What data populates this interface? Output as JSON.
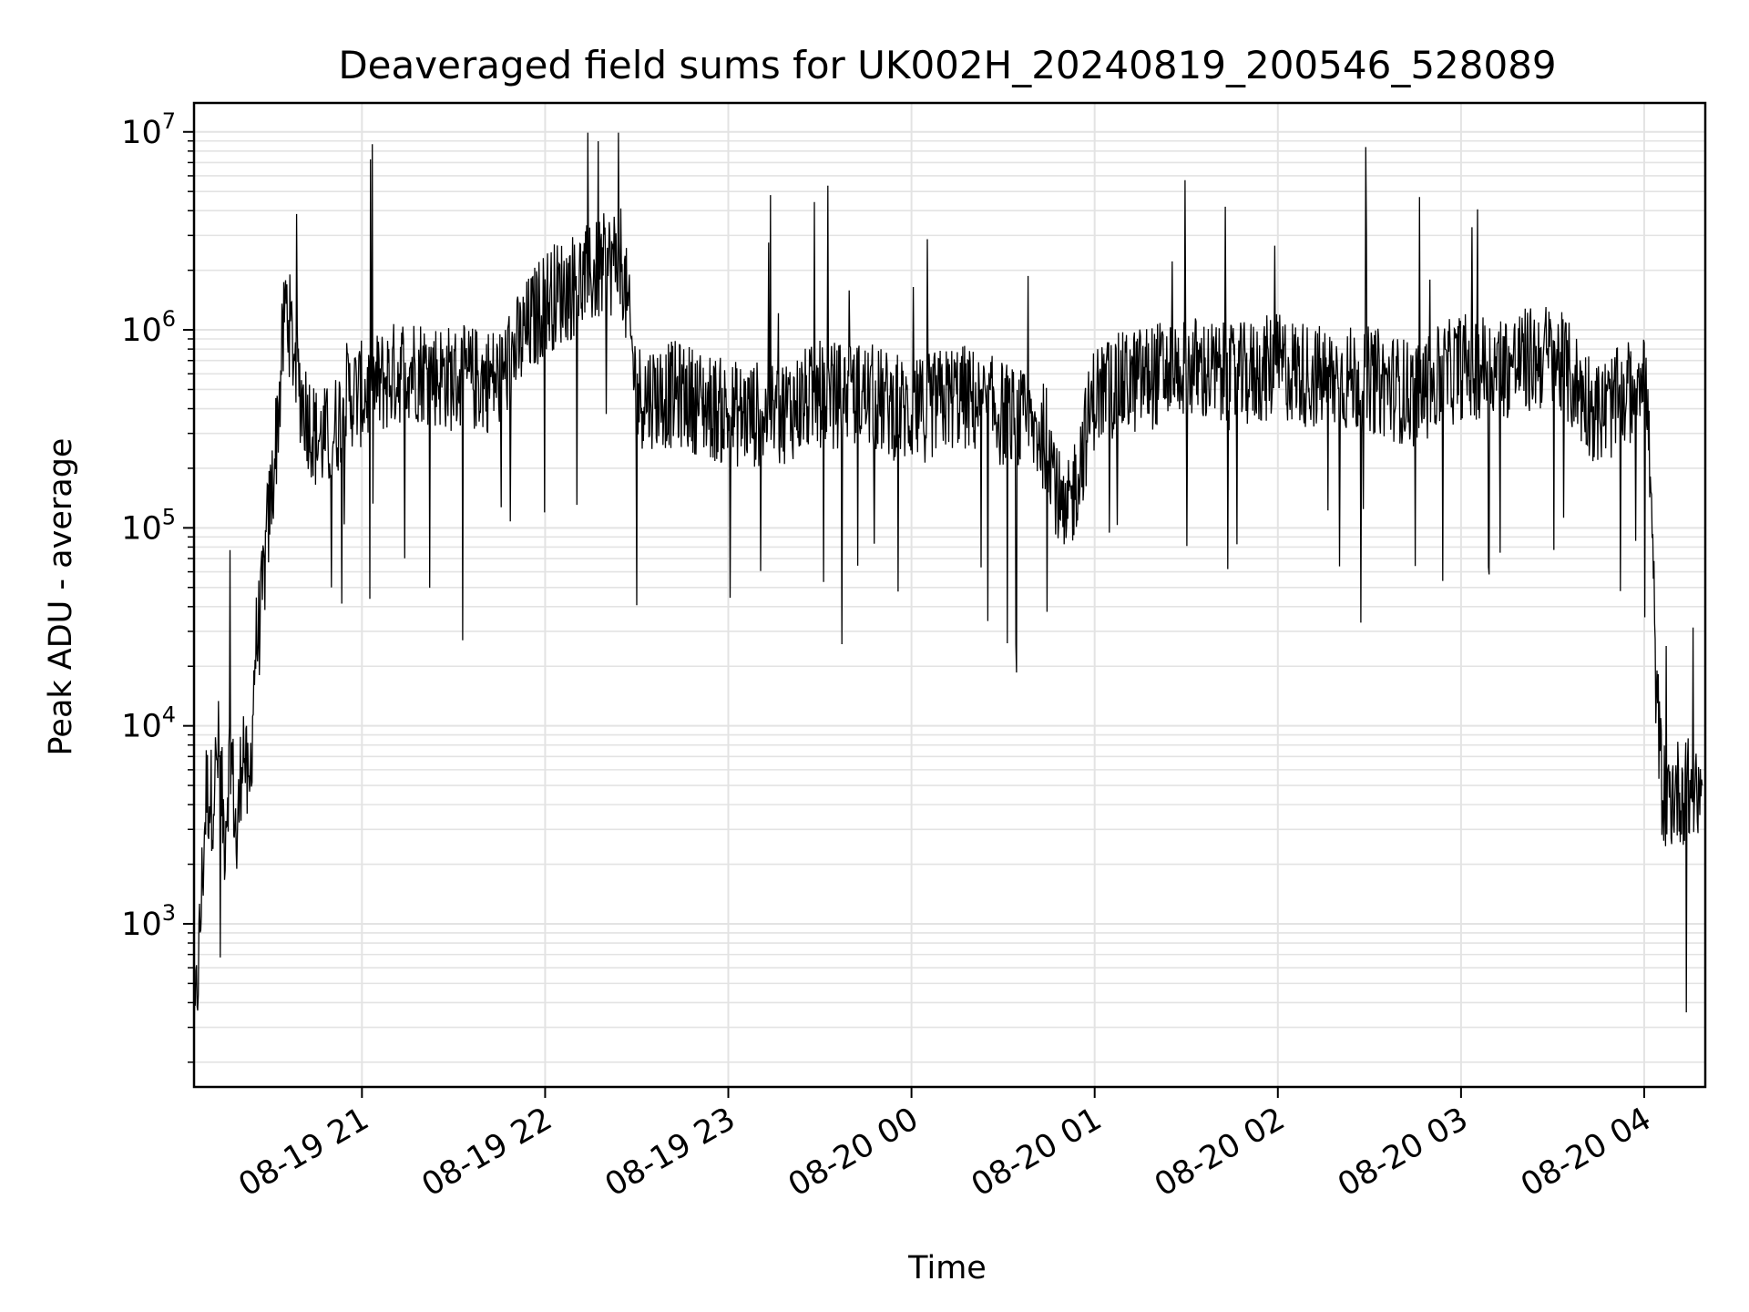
{
  "chart_data": {
    "type": "line",
    "title": "Deaveraged field sums for UK002H_20240819_200546_528089",
    "xlabel": "Time",
    "ylabel": "Peak ADU - average",
    "yscale": "log",
    "ylim": [
      150,
      14000000
    ],
    "xlim": [
      "2024-08-19 20:05",
      "2024-08-20 04:20"
    ],
    "grid": "on (major and minor)",
    "line_color": "#000000",
    "x_ticks": [
      {
        "label": "08-19 21",
        "t": "2024-08-19 21:00"
      },
      {
        "label": "08-19 22",
        "t": "2024-08-19 22:00"
      },
      {
        "label": "08-19 23",
        "t": "2024-08-19 23:00"
      },
      {
        "label": "08-20 00",
        "t": "2024-08-20 00:00"
      },
      {
        "label": "08-20 01",
        "t": "2024-08-20 01:00"
      },
      {
        "label": "08-20 02",
        "t": "2024-08-20 02:00"
      },
      {
        "label": "08-20 03",
        "t": "2024-08-20 03:00"
      },
      {
        "label": "08-20 04",
        "t": "2024-08-20 04:00"
      }
    ],
    "y_ticks": [
      {
        "base": "10",
        "exp": "3",
        "value": 1000
      },
      {
        "base": "10",
        "exp": "4",
        "value": 10000
      },
      {
        "base": "10",
        "exp": "5",
        "value": 100000
      },
      {
        "base": "10",
        "exp": "6",
        "value": 1000000
      },
      {
        "base": "10",
        "exp": "7",
        "value": 10000000
      }
    ],
    "series": [
      {
        "x": [
          "2024-08-19 20:05",
          "2024-08-19 20:07",
          "2024-08-19 20:09",
          "2024-08-19 20:11",
          "2024-08-19 20:13",
          "2024-08-19 20:15",
          "2024-08-19 20:17",
          "2024-08-19 20:19",
          "2024-08-19 20:21",
          "2024-08-19 20:23",
          "2024-08-19 20:25",
          "2024-08-19 20:27",
          "2024-08-19 20:29",
          "2024-08-19 20:31",
          "2024-08-19 20:33",
          "2024-08-19 20:35",
          "2024-08-19 20:40",
          "2024-08-19 20:45",
          "2024-08-19 20:50",
          "2024-08-19 20:55",
          "2024-08-19 21:00",
          "2024-08-19 21:15",
          "2024-08-19 21:30",
          "2024-08-19 21:45",
          "2024-08-19 22:00",
          "2024-08-19 22:15",
          "2024-08-19 22:25",
          "2024-08-19 22:30",
          "2024-08-19 22:45",
          "2024-08-19 23:00",
          "2024-08-19 23:15",
          "2024-08-19 23:30",
          "2024-08-19 23:45",
          "2024-08-20 00:00",
          "2024-08-20 00:15",
          "2024-08-20 00:30",
          "2024-08-20 00:45",
          "2024-08-20 00:50",
          "2024-08-20 01:00",
          "2024-08-20 01:15",
          "2024-08-20 01:30",
          "2024-08-20 01:45",
          "2024-08-20 02:00",
          "2024-08-20 02:15",
          "2024-08-20 02:30",
          "2024-08-20 02:45",
          "2024-08-20 03:00",
          "2024-08-20 03:15",
          "2024-08-20 03:30",
          "2024-08-20 03:45",
          "2024-08-20 03:55",
          "2024-08-20 04:00",
          "2024-08-20 04:02",
          "2024-08-20 04:04",
          "2024-08-20 04:06",
          "2024-08-20 04:08",
          "2024-08-20 04:10",
          "2024-08-20 04:13",
          "2024-08-20 04:16",
          "2024-08-20 04:19"
        ],
        "values": [
          250,
          1000,
          5000,
          4500,
          8000,
          3000,
          9000,
          2500,
          10000,
          4000,
          25000,
          40000,
          100000,
          200000,
          500000,
          1500000,
          500000,
          300000,
          300000,
          500000,
          500000,
          700000,
          600000,
          600000,
          1500000,
          2000000,
          2500000,
          500000,
          500000,
          400000,
          400000,
          500000,
          500000,
          400000,
          500000,
          400000,
          300000,
          100000,
          500000,
          600000,
          700000,
          600000,
          700000,
          600000,
          600000,
          500000,
          700000,
          700000,
          800000,
          400000,
          500000,
          800000,
          200000,
          15000,
          5000,
          4500,
          5000,
          5000,
          5000,
          5000
        ]
      }
    ]
  }
}
